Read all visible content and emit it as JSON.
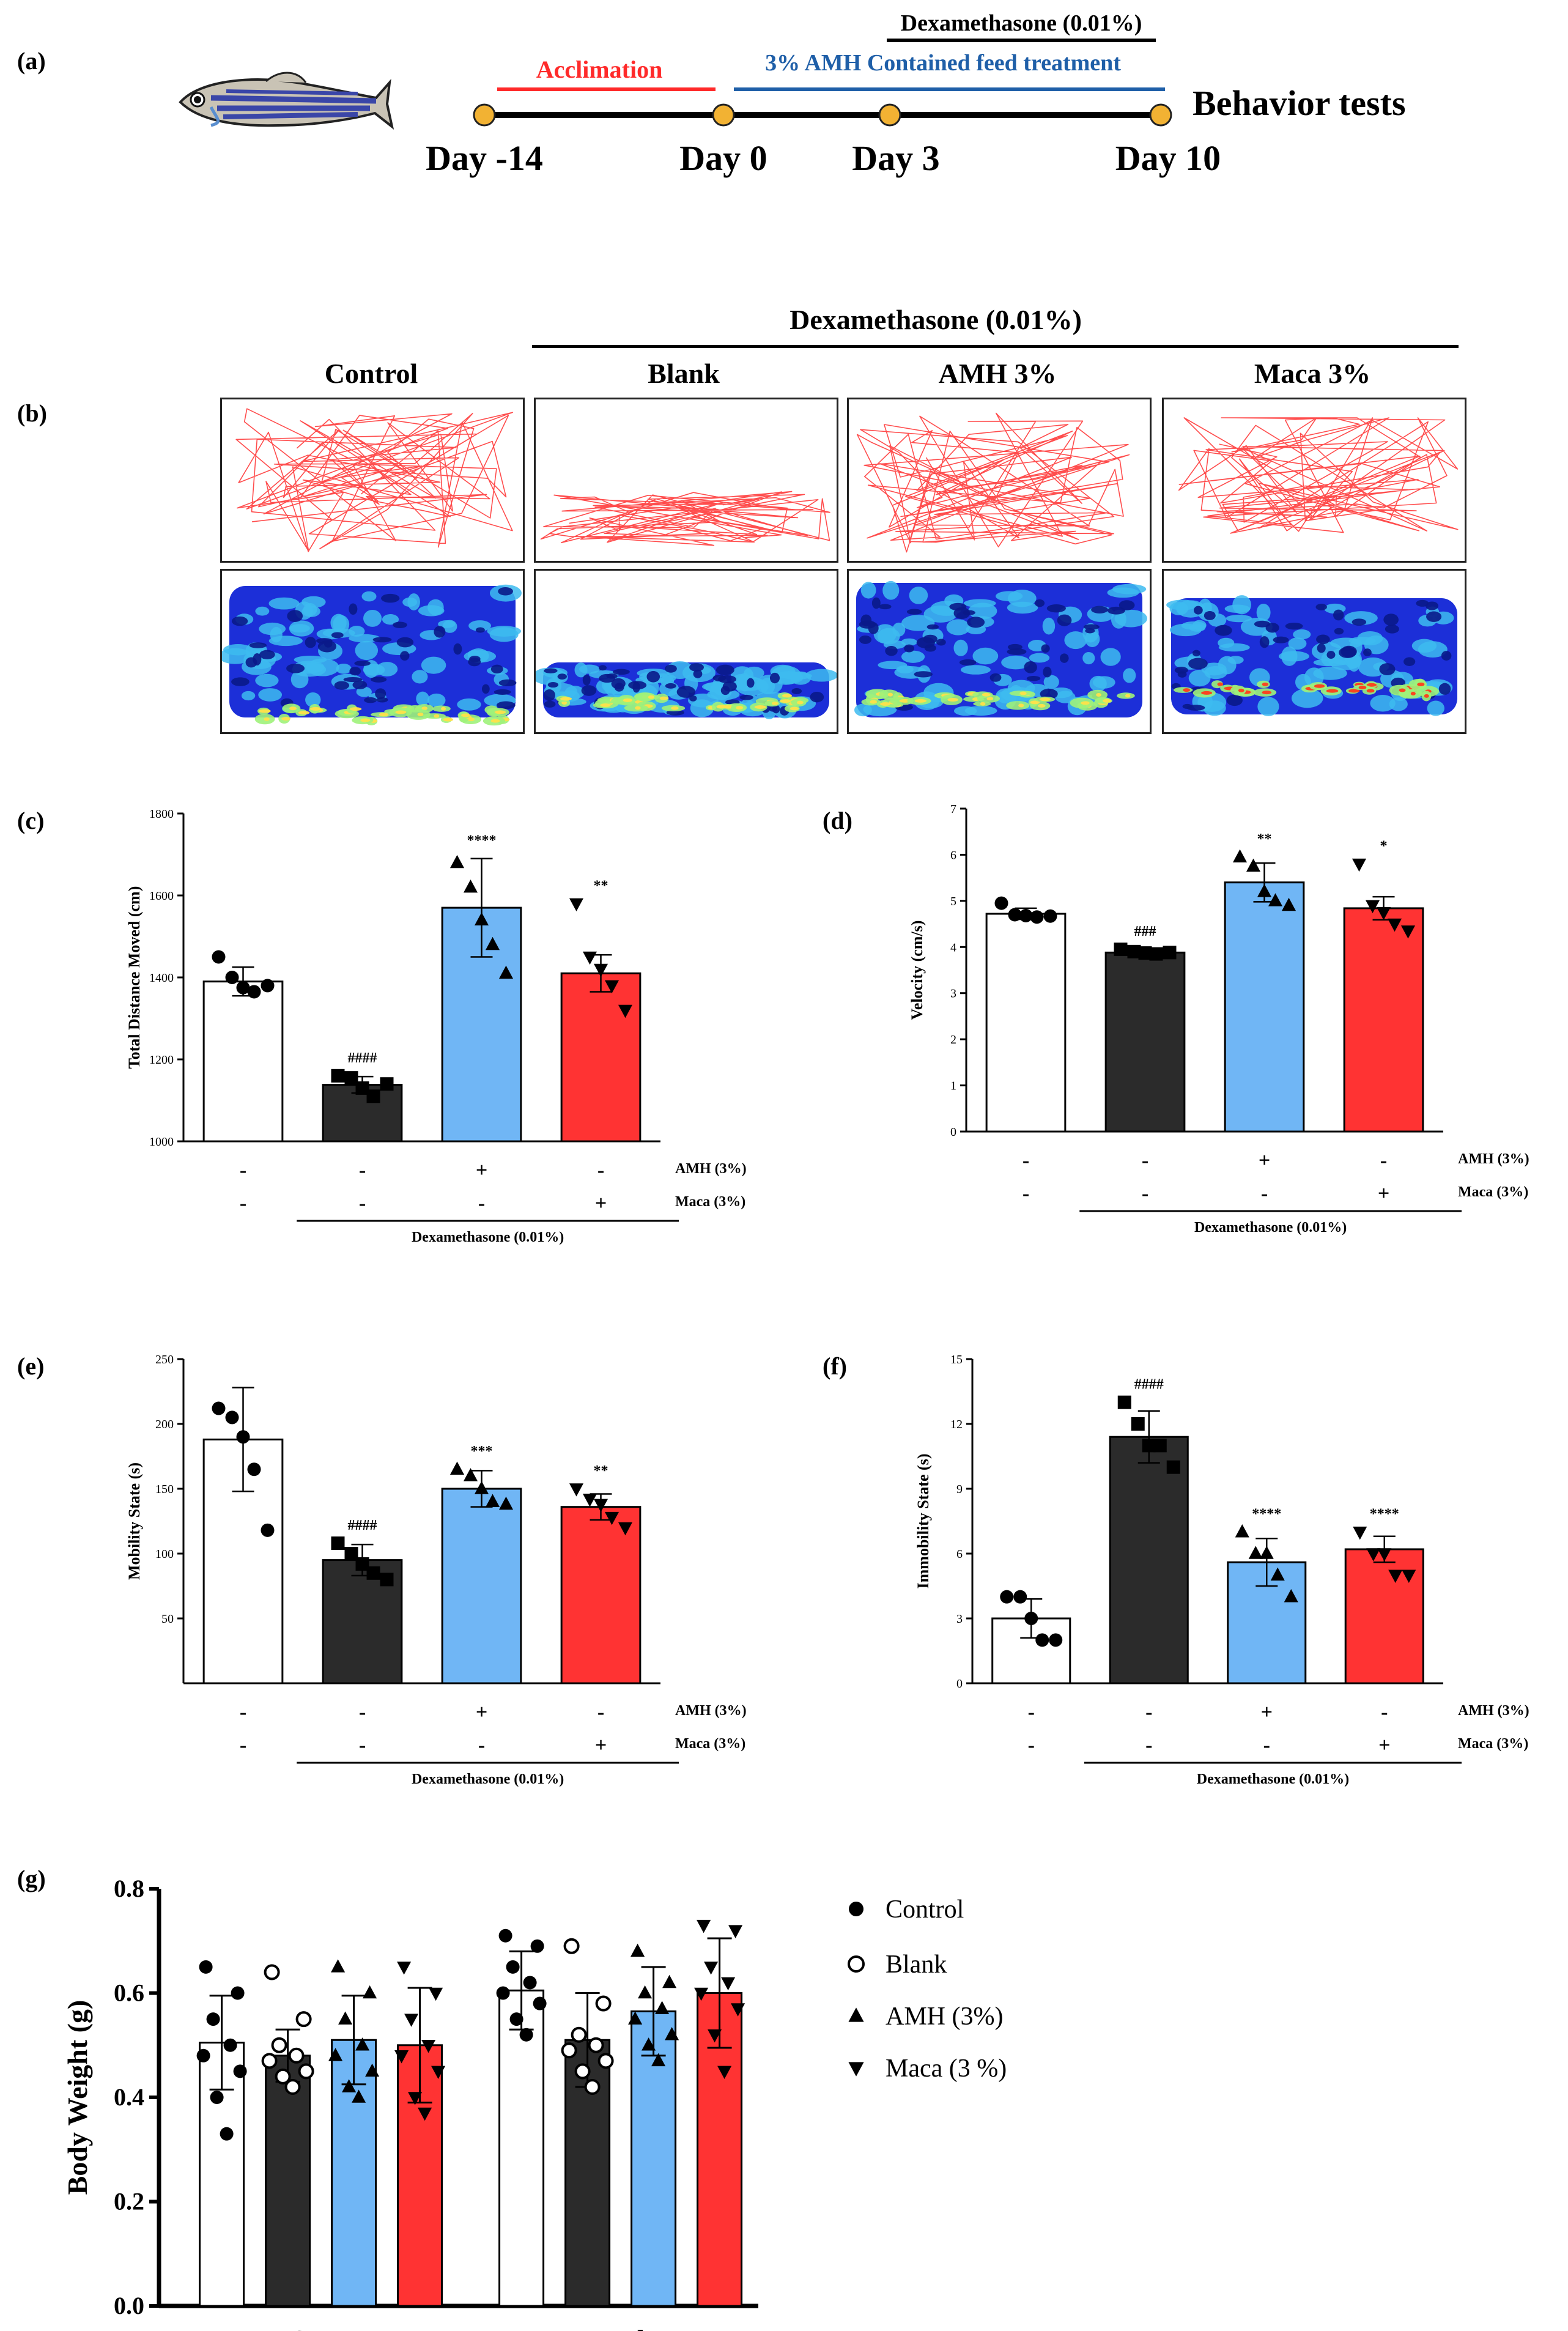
{
  "panel_labels": {
    "a": "(a)",
    "b": "(b)",
    "c": "(c)",
    "d": "(d)",
    "e": "(e)",
    "f": "(f)",
    "g": "(g)"
  },
  "colors": {
    "control": "#ffffff",
    "blank": "#2b2b2b",
    "amh": "#70b6f5",
    "maca": "#ff3333",
    "acclimation": "#ff2a2a",
    "treatment": "#1f5fa8",
    "track": "#ff4d4d",
    "timeline_dot": "#f2b233"
  },
  "timeline": {
    "dexamethasone_label": "Dexamethasone (0.01%)",
    "acclimation_label": "Acclimation",
    "treatment_label": "3% AMH Contained feed treatment",
    "behavior_label": "Behavior tests",
    "days": [
      "Day -14",
      "Day 0",
      "Day 3",
      "Day 10"
    ],
    "fish_icon": "zebrafish-icon"
  },
  "tracking": {
    "dexamethasone_label": "Dexamethasone (0.01%)",
    "columns": [
      "Control",
      "Blank",
      "AMH 3%",
      "Maca 3%"
    ]
  },
  "behavior_panels_note": "AMH (3%) / Maca (3%) / Dexamethasone (0.01%) condition table under each chart",
  "chart_data": [
    {
      "id": "c",
      "type": "bar",
      "ylabel": "Total Distance Moved (cm)",
      "ylim": [
        1000,
        1800
      ],
      "yticks": [
        1000,
        1200,
        1400,
        1600,
        1800
      ],
      "categories": [
        "Control",
        "Blank",
        "AMH 3%",
        "Maca 3%"
      ],
      "values": [
        1390,
        1138,
        1570,
        1410
      ],
      "errors": [
        35,
        20,
        120,
        45
      ],
      "points": [
        [
          1450,
          1400,
          1375,
          1365,
          1380
        ],
        [
          1160,
          1155,
          1130,
          1110,
          1140
        ],
        [
          1680,
          1620,
          1540,
          1480,
          1410
        ],
        [
          1580,
          1450,
          1420,
          1380,
          1320
        ]
      ],
      "annotations": [
        "",
        "####",
        "****",
        "**"
      ],
      "conditions": {
        "amh_label": "AMH (3%)",
        "maca_label": "Maca (3%)",
        "amh": [
          "-",
          "-",
          "+",
          "-"
        ],
        "maca": [
          "-",
          "-",
          "-",
          "+"
        ],
        "dex_label": "Dexamethasone (0.01%)"
      }
    },
    {
      "id": "d",
      "type": "bar",
      "ylabel": "Velocity (cm/s)",
      "ylim": [
        0,
        7
      ],
      "yticks": [
        0,
        1,
        2,
        3,
        4,
        5,
        6,
        7
      ],
      "categories": [
        "Control",
        "Blank",
        "AMH 3%",
        "Maca 3%"
      ],
      "values": [
        4.72,
        3.88,
        5.4,
        4.84
      ],
      "errors": [
        0.12,
        0.07,
        0.42,
        0.25
      ],
      "points": [
        [
          4.95,
          4.7,
          4.68,
          4.65,
          4.67
        ],
        [
          3.95,
          3.9,
          3.87,
          3.85,
          3.88
        ],
        [
          5.95,
          5.75,
          5.2,
          5.0,
          4.9
        ],
        [
          5.8,
          4.9,
          4.75,
          4.5,
          4.35
        ]
      ],
      "annotations": [
        "",
        "###",
        "**",
        "*"
      ],
      "conditions": {
        "amh_label": "AMH (3%)",
        "maca_label": "Maca (3%)",
        "amh": [
          "-",
          "-",
          "+",
          "-"
        ],
        "maca": [
          "-",
          "-",
          "-",
          "+"
        ],
        "dex_label": "Dexamethasone (0.01%)"
      }
    },
    {
      "id": "e",
      "type": "bar",
      "ylabel": "Mobility State (s)",
      "ylim": [
        0,
        250
      ],
      "yticks": [
        50,
        100,
        150,
        200,
        250
      ],
      "categories": [
        "Control",
        "Blank",
        "AMH 3%",
        "Maca 3%"
      ],
      "values": [
        188,
        95,
        150,
        136
      ],
      "errors": [
        40,
        12,
        14,
        10
      ],
      "points": [
        [
          212,
          205,
          190,
          165,
          118
        ],
        [
          108,
          100,
          92,
          85,
          80
        ],
        [
          165,
          160,
          150,
          140,
          138
        ],
        [
          150,
          142,
          138,
          128,
          120
        ]
      ],
      "annotations": [
        "",
        "####",
        "***",
        "**"
      ],
      "conditions": {
        "amh_label": "AMH (3%)",
        "maca_label": "Maca (3%)",
        "amh": [
          "-",
          "-",
          "+",
          "-"
        ],
        "maca": [
          "-",
          "-",
          "-",
          "+"
        ],
        "dex_label": "Dexamethasone (0.01%)"
      }
    },
    {
      "id": "f",
      "type": "bar",
      "ylabel": "Immobility State (s)",
      "ylim": [
        0,
        15
      ],
      "yticks": [
        0,
        3,
        6,
        9,
        12,
        15
      ],
      "categories": [
        "Control",
        "Blank",
        "AMH 3%",
        "Maca 3%"
      ],
      "values": [
        3.0,
        11.4,
        5.6,
        6.2
      ],
      "errors": [
        0.9,
        1.2,
        1.1,
        0.6
      ],
      "points": [
        [
          4.0,
          4.0,
          3.0,
          2.0,
          2.0
        ],
        [
          13.0,
          12.0,
          11.0,
          11.0,
          10.0
        ],
        [
          7.0,
          6.0,
          6.0,
          5.0,
          4.0
        ],
        [
          7.0,
          6.0,
          6.0,
          5.0,
          5.0
        ]
      ],
      "annotations": [
        "",
        "####",
        "****",
        "****"
      ],
      "conditions": {
        "amh_label": "AMH (3%)",
        "maca_label": "Maca (3%)",
        "amh": [
          "-",
          "-",
          "+",
          "-"
        ],
        "maca": [
          "-",
          "-",
          "-",
          "+"
        ],
        "dex_label": "Dexamethasone (0.01%)"
      }
    },
    {
      "id": "g",
      "type": "bar",
      "ylabel": "Body Weight (g)",
      "ylim": [
        0,
        0.8
      ],
      "yticks": [
        "0.0",
        "0.2",
        "0.4",
        "0.6",
        "0.8"
      ],
      "categories": [
        "Start",
        "End"
      ],
      "series": [
        {
          "name": "Control",
          "marker": "filled-circle",
          "values": [
            0.505,
            0.605
          ],
          "errors": [
            0.09,
            0.075
          ],
          "points": [
            [
              0.65,
              0.6,
              0.55,
              0.5,
              0.48,
              0.45,
              0.4,
              0.33
            ],
            [
              0.71,
              0.69,
              0.65,
              0.62,
              0.6,
              0.58,
              0.55,
              0.52
            ]
          ]
        },
        {
          "name": "Blank",
          "marker": "open-circle",
          "values": [
            0.48,
            0.51
          ],
          "errors": [
            0.05,
            0.09
          ],
          "points": [
            [
              0.64,
              0.55,
              0.5,
              0.48,
              0.47,
              0.45,
              0.44,
              0.42
            ],
            [
              0.69,
              0.58,
              0.52,
              0.5,
              0.49,
              0.47,
              0.45,
              0.42
            ]
          ]
        },
        {
          "name": "AMH (3%)",
          "marker": "triangle-up",
          "values": [
            0.51,
            0.565
          ],
          "errors": [
            0.085,
            0.085
          ],
          "points": [
            [
              0.65,
              0.6,
              0.55,
              0.5,
              0.48,
              0.45,
              0.42,
              0.4
            ],
            [
              0.68,
              0.62,
              0.6,
              0.57,
              0.55,
              0.52,
              0.5,
              0.47
            ]
          ]
        },
        {
          "name": "Maca (3 %)",
          "marker": "triangle-down",
          "values": [
            0.5,
            0.6
          ],
          "errors": [
            0.11,
            0.105
          ],
          "points": [
            [
              0.65,
              0.6,
              0.55,
              0.5,
              0.48,
              0.45,
              0.4,
              0.37
            ],
            [
              0.73,
              0.72,
              0.65,
              0.62,
              0.6,
              0.57,
              0.52,
              0.45
            ]
          ]
        }
      ]
    }
  ]
}
